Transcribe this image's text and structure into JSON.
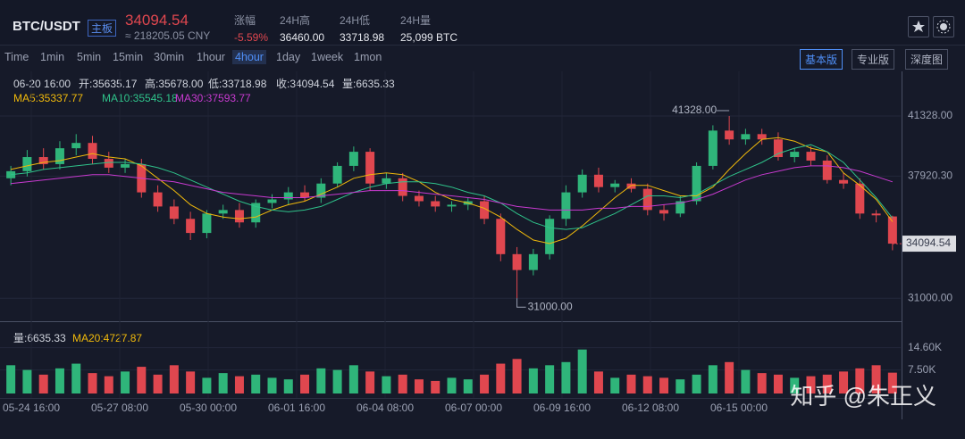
{
  "header": {
    "pair": "BTC/USDT",
    "board": "主板",
    "price": "34094.54",
    "cny": "≈ 218205.05 CNY",
    "stats": [
      {
        "label": "涨幅",
        "value": "-5.59%"
      },
      {
        "label": "24H高",
        "value": "36460.00"
      },
      {
        "label": "24H低",
        "value": "33718.98"
      },
      {
        "label": "24H量",
        "value": "25,099 BTC"
      }
    ]
  },
  "tabs": [
    "Time",
    "1min",
    "5min",
    "15min",
    "30min",
    "1hour",
    "4hour",
    "1day",
    "1week",
    "1mon"
  ],
  "active_tab": "4hour",
  "view_buttons": [
    "基本版",
    "专业版",
    "深度图"
  ],
  "active_view": "基本版",
  "info": [
    "06-20 16:00",
    "开:35635.17",
    "高:35678.00",
    "低:33718.98",
    "收:34094.54",
    "量:6635.33"
  ],
  "ma_legend": [
    {
      "text": "MA5:35337.77",
      "color": "#f0b90b"
    },
    {
      "text": "MA10:35545.18",
      "color": "#2fc28a"
    },
    {
      "text": "MA30:37593.77",
      "color": "#c83ad0"
    }
  ],
  "volume_legend": [
    "量:6635.33",
    "MA20:4727.87"
  ],
  "watermark": "知乎 @朱正义",
  "chart_data": {
    "type": "candlestick",
    "up_color": "#2fb57a",
    "down_color": "#e0474f",
    "open": [
      37800,
      38200,
      39000,
      38600,
      39500,
      39800,
      38900,
      38400,
      38600,
      37000,
      36200,
      35500,
      34700,
      35800,
      36000,
      35300,
      36400,
      36600,
      37000,
      36700,
      37500,
      38500,
      39300,
      37500,
      37800,
      36800,
      36500,
      36200,
      36300,
      36500,
      35500,
      33500,
      32600,
      33500,
      35500,
      37000,
      38000,
      37300,
      37500,
      37200,
      36000,
      35800,
      36500,
      38500,
      40500,
      40000,
      40300,
      40000,
      39000,
      39300,
      38800,
      37700,
      37500,
      35800,
      35635.17
    ],
    "high": [
      38500,
      39400,
      39500,
      39900,
      40300,
      40200,
      39300,
      38900,
      38900,
      37400,
      36600,
      35900,
      36000,
      36300,
      36400,
      36600,
      36900,
      37300,
      37400,
      37800,
      38700,
      39600,
      39500,
      38100,
      38100,
      37100,
      36800,
      36500,
      36700,
      36800,
      35800,
      33900,
      33800,
      35700,
      37400,
      38300,
      38400,
      37700,
      37800,
      37500,
      36300,
      36800,
      38700,
      40800,
      41328,
      40600,
      40600,
      40400,
      39500,
      39600,
      39100,
      38100,
      37800,
      36000,
      35678
    ],
    "low": [
      37400,
      37900,
      38300,
      38300,
      39100,
      38600,
      38100,
      38100,
      36700,
      35900,
      35200,
      34300,
      34400,
      35500,
      35000,
      35000,
      36100,
      36300,
      36500,
      36400,
      37300,
      38200,
      37100,
      37200,
      36500,
      36200,
      35900,
      35900,
      36000,
      35200,
      33100,
      31000,
      32300,
      33200,
      35100,
      36700,
      37000,
      37000,
      37000,
      35700,
      35400,
      35600,
      36300,
      38300,
      39700,
      39700,
      39700,
      38800,
      38700,
      38500,
      37500,
      37200,
      35500,
      35300,
      33718.98
    ],
    "close": [
      38200,
      39000,
      38600,
      39500,
      39800,
      38900,
      38400,
      38600,
      37000,
      36200,
      35500,
      34700,
      35800,
      36000,
      35300,
      36400,
      36600,
      37000,
      36700,
      37500,
      38500,
      39300,
      37500,
      37800,
      36800,
      36500,
      36200,
      36300,
      36500,
      35500,
      33500,
      32600,
      33500,
      35500,
      37000,
      38000,
      37300,
      37500,
      37200,
      36000,
      35800,
      36500,
      38500,
      40500,
      40000,
      40300,
      40000,
      39000,
      39300,
      38800,
      37700,
      37500,
      35800,
      35700,
      34094.54
    ],
    "volume": [
      9000,
      7500,
      6000,
      8000,
      9500,
      6500,
      5500,
      7000,
      8500,
      6000,
      9000,
      7000,
      5000,
      6500,
      5500,
      6000,
      5000,
      4500,
      6000,
      8000,
      7500,
      9000,
      7000,
      5500,
      6000,
      4500,
      4000,
      5000,
      4500,
      6000,
      9500,
      11000,
      8000,
      9000,
      10000,
      14000,
      7000,
      5000,
      6000,
      5500,
      5000,
      4500,
      6000,
      9000,
      10000,
      7500,
      6500,
      6000,
      5000,
      5500,
      6000,
      7000,
      8000,
      9000,
      6635.33
    ],
    "ma": [
      {
        "color": "#f0b90b",
        "values": [
          38300,
          38500,
          38700,
          38800,
          39000,
          39200,
          39000,
          38900,
          38500,
          37800,
          37100,
          36300,
          35800,
          35600,
          35500,
          35600,
          36000,
          36300,
          36500,
          36900,
          37300,
          37800,
          38000,
          38100,
          38000,
          37600,
          37000,
          36600,
          36400,
          36100,
          35600,
          34900,
          34300,
          34100,
          34400,
          35100,
          35900,
          36700,
          37400,
          37400,
          37100,
          36800,
          36800,
          37300,
          38300,
          39200,
          40000,
          40100,
          39900,
          39500,
          39300,
          38100,
          37400,
          36600,
          35337.77
        ]
      },
      {
        "color": "#2fc28a",
        "values": [
          38000,
          38100,
          38300,
          38400,
          38500,
          38600,
          38700,
          38700,
          38600,
          38400,
          38100,
          37700,
          37300,
          36900,
          36500,
          36200,
          36000,
          35900,
          36000,
          36200,
          36600,
          37000,
          37300,
          37500,
          37600,
          37600,
          37500,
          37300,
          37000,
          36800,
          36400,
          35800,
          35300,
          35000,
          34900,
          35000,
          35400,
          35800,
          36300,
          36800,
          36800,
          36700,
          36900,
          37400,
          37900,
          38300,
          38700,
          39200,
          39500,
          39700,
          39300,
          38700,
          37700,
          36700,
          35545.18
        ]
      },
      {
        "color": "#c83ad0",
        "values": [
          37500,
          37600,
          37700,
          37800,
          37900,
          38000,
          38000,
          37900,
          37800,
          37700,
          37600,
          37400,
          37200,
          37000,
          36900,
          36800,
          36700,
          36700,
          36700,
          36800,
          36900,
          37000,
          37100,
          37100,
          37100,
          37000,
          36900,
          36800,
          36700,
          36600,
          36400,
          36200,
          36100,
          36000,
          36000,
          36000,
          36100,
          36100,
          36200,
          36200,
          36300,
          36400,
          36600,
          36900,
          37300,
          37700,
          38000,
          38200,
          38400,
          38500,
          38500,
          38400,
          38200,
          37900,
          37593.77
        ]
      }
    ],
    "ylim": [
      29700,
      43450
    ],
    "yticks": [
      {
        "value": 41328,
        "label": "41328.00"
      },
      {
        "value": 37920.3,
        "label": "37920.30"
      },
      {
        "value": 31000,
        "label": "31000.00"
      }
    ],
    "high_label": "41328.00",
    "low_label": "31000.00",
    "last_label": "34094.54",
    "vlim": [
      0,
      19600
    ],
    "vticks": [
      {
        "value": 14600,
        "label": "14.60K"
      },
      {
        "value": 7500,
        "label": "7.50K"
      }
    ],
    "x_labels": [
      "05-24 16:00",
      "05-27 08:00",
      "05-30 00:00",
      "06-01 16:00",
      "06-04 08:00",
      "06-07 00:00",
      "06-09 16:00",
      "06-12 08:00",
      "06-15 00:00"
    ]
  }
}
